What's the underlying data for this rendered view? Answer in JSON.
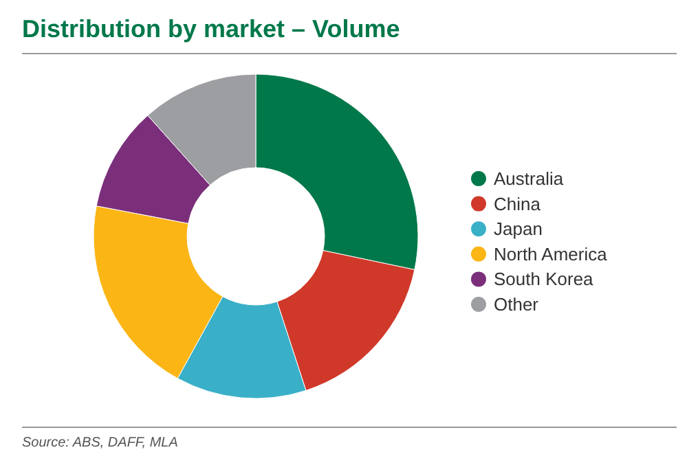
{
  "chart_data": {
    "type": "donut",
    "title": "Distribution by market – Volume",
    "categories": [
      "Australia",
      "China",
      "Japan",
      "North America",
      "South Korea",
      "Other"
    ],
    "values": [
      28.3,
      16.7,
      13,
      20,
      10.4,
      11.6
    ],
    "colors": [
      "#00784a",
      "#d0392a",
      "#3aafc8",
      "#fbb515",
      "#7b2f7b",
      "#9d9ea2"
    ],
    "legend": "right",
    "annotations": [
      "Source: ABS, DAFF, MLA"
    ]
  }
}
